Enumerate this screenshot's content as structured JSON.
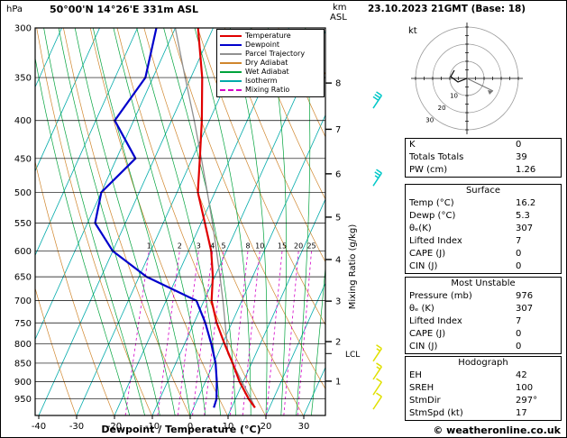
{
  "header": {
    "pressure_unit": "hPa",
    "station_title": "50°00'N 14°26'E 331m ASL",
    "altitude_unit_top": "km",
    "altitude_unit_bottom": "ASL",
    "datetime": "23.10.2023 21GMT (Base: 18)"
  },
  "axes": {
    "pressure_ticks": [
      300,
      350,
      400,
      450,
      500,
      550,
      600,
      650,
      700,
      750,
      800,
      850,
      900,
      950
    ],
    "temp_ticks": [
      -40,
      -30,
      -20,
      -10,
      0,
      10,
      20,
      30
    ],
    "xlabel": "Dewpoint / Temperature (°C)",
    "mixing_ratio_axis_label": "Mixing Ratio (g/kg)",
    "km_ticks": [
      {
        "km": 8,
        "pressure": 356
      },
      {
        "km": 7,
        "pressure": 411
      },
      {
        "km": 6,
        "pressure": 472
      },
      {
        "km": 5,
        "pressure": 540
      },
      {
        "km": 4,
        "pressure": 616
      },
      {
        "km": 3,
        "pressure": 701
      },
      {
        "km": 2,
        "pressure": 795
      },
      {
        "km": 1,
        "pressure": 899
      }
    ],
    "lcl_label": "LCL",
    "lcl_pressure": 825
  },
  "legend": [
    {
      "label": "Temperature",
      "color": "#e00000",
      "dash": false
    },
    {
      "label": "Dewpoint",
      "color": "#0000cc",
      "dash": false
    },
    {
      "label": "Parcel Trajectory",
      "color": "#909090",
      "dash": false
    },
    {
      "label": "Dry Adiabat",
      "color": "#d0862d",
      "dash": false
    },
    {
      "label": "Wet Adiabat",
      "color": "#00a33c",
      "dash": false
    },
    {
      "label": "Isotherm",
      "color": "#00aaaa",
      "dash": false
    },
    {
      "label": "Mixing Ratio",
      "color": "#d400c8",
      "dash": true
    }
  ],
  "colors": {
    "temperature": "#e00000",
    "dewpoint": "#0000cc",
    "parcel": "#909090",
    "dry_adiabat": "#d0862d",
    "wet_adiabat": "#00a33c",
    "isotherm": "#00aaaa",
    "mixing_ratio": "#d400c8"
  },
  "chart_data": {
    "type": "skewt-logp",
    "title": "50°00'N 14°26'E 331m ASL",
    "pressure_range": [
      300,
      1000
    ],
    "xlabel": "Dewpoint / Temperature (°C)",
    "sounding": {
      "pressure": [
        976,
        950,
        900,
        850,
        800,
        750,
        700,
        650,
        600,
        550,
        500,
        450,
        400,
        350,
        300
      ],
      "temperature": [
        16.2,
        13.5,
        9.0,
        5.0,
        0.5,
        -4.0,
        -8.0,
        -10.5,
        -14.0,
        -19.0,
        -24.5,
        -28.0,
        -32.0,
        -37.0,
        -44.0
      ],
      "dewpoint": [
        5.3,
        5.0,
        3.0,
        0.5,
        -3.0,
        -7.0,
        -12.0,
        -28.0,
        -40.0,
        -48.0,
        -50.0,
        -45.0,
        -55.0,
        -52.0,
        -55.0
      ]
    },
    "parcel": {
      "pressure": [
        976,
        950,
        900,
        850,
        825,
        800,
        750,
        700,
        650,
        600,
        550,
        500,
        450,
        400,
        350,
        300
      ],
      "temperature": [
        16.2,
        14.1,
        9.6,
        5.0,
        2.6,
        1.2,
        -1.8,
        -5.0,
        -8.6,
        -12.6,
        -17.0,
        -22.0,
        -27.6,
        -34.0,
        -41.5,
        -50.0
      ]
    },
    "mixing_ratio_lines": [
      1,
      2,
      3,
      4,
      5,
      8,
      10,
      15,
      20,
      25
    ],
    "isotherm_step": 10,
    "wind_barbs": [
      {
        "pressure": 385,
        "speed": 30,
        "color": "#00c8c8"
      },
      {
        "pressure": 490,
        "speed": 25,
        "color": "#00c8c8"
      },
      {
        "pressure": 845,
        "speed": 15,
        "color": "#e0e000"
      },
      {
        "pressure": 894,
        "speed": 15,
        "color": "#e0e000"
      },
      {
        "pressure": 938,
        "speed": 10,
        "color": "#e0e000"
      },
      {
        "pressure": 981,
        "speed": 10,
        "color": "#e0e000"
      }
    ]
  },
  "hodograph": {
    "unit_label": "kt",
    "ring_values": [
      10,
      20,
      30
    ]
  },
  "tables": {
    "indices": {
      "rows": [
        {
          "label": "K",
          "value": "0"
        },
        {
          "label": "Totals Totals",
          "value": "39"
        },
        {
          "label": "PW (cm)",
          "value": "1.26"
        }
      ]
    },
    "surface": {
      "title": "Surface",
      "rows": [
        {
          "label": "Temp (°C)",
          "value": "16.2"
        },
        {
          "label": "Dewp (°C)",
          "value": "5.3"
        },
        {
          "label": "θₑ(K)",
          "value": "307"
        },
        {
          "label": "Lifted Index",
          "value": "7"
        },
        {
          "label": "CAPE (J)",
          "value": "0"
        },
        {
          "label": "CIN (J)",
          "value": "0"
        }
      ]
    },
    "most_unstable": {
      "title": "Most Unstable",
      "rows": [
        {
          "label": "Pressure (mb)",
          "value": "976"
        },
        {
          "label": "θₑ (K)",
          "value": "307"
        },
        {
          "label": "Lifted Index",
          "value": "7"
        },
        {
          "label": "CAPE (J)",
          "value": "0"
        },
        {
          "label": "CIN (J)",
          "value": "0"
        }
      ]
    },
    "hodograph": {
      "title": "Hodograph",
      "rows": [
        {
          "label": "EH",
          "value": "42"
        },
        {
          "label": "SREH",
          "value": "100"
        },
        {
          "label": "StmDir",
          "value": "297°"
        },
        {
          "label": "StmSpd (kt)",
          "value": "17"
        }
      ]
    }
  },
  "footer": {
    "copyright": "© weatheronline.co.uk"
  }
}
